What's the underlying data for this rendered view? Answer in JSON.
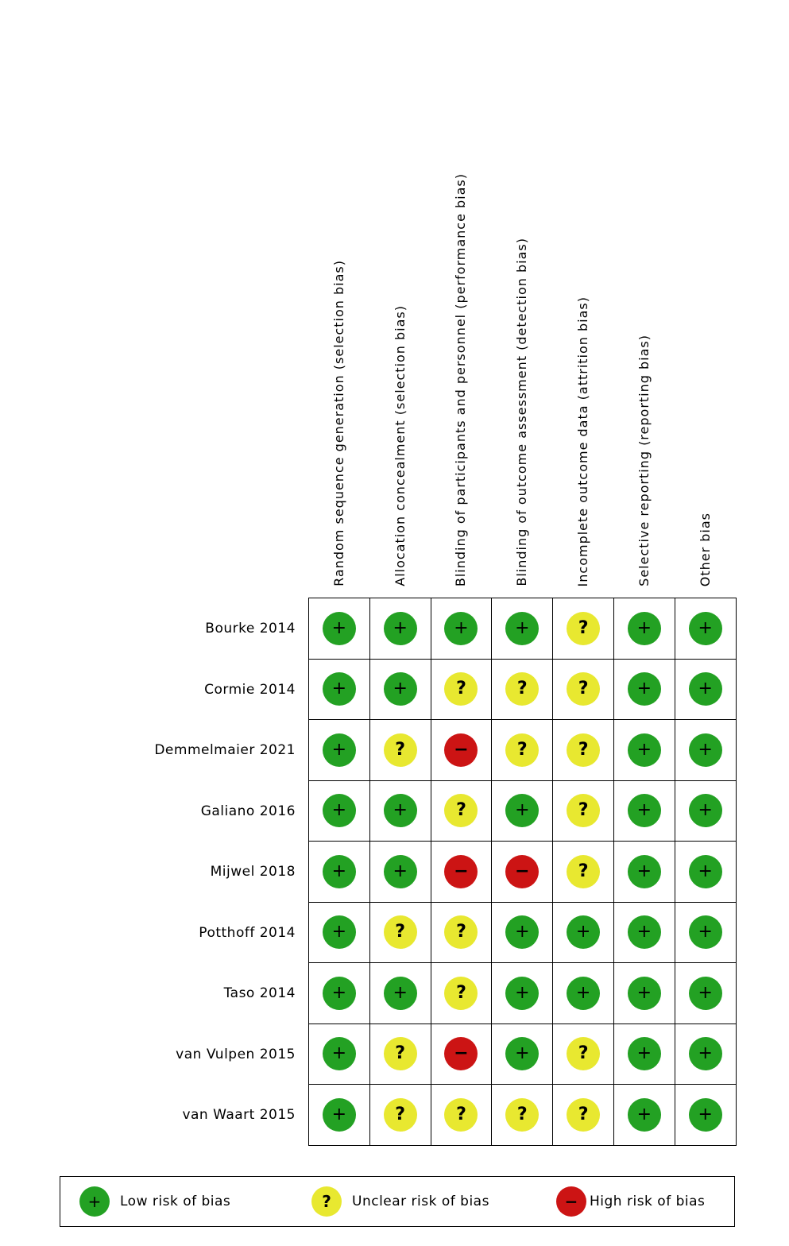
{
  "colors": {
    "low": "#23a123",
    "unclear": "#e8e830",
    "high": "#cc1414",
    "symbol": "#000000",
    "border": "#000000",
    "background": "#ffffff"
  },
  "chart_data": {
    "type": "table",
    "subtype": "risk-of-bias-summary",
    "title": "",
    "columns": [
      "Random sequence generation (selection bias)",
      "Allocation concealment (selection bias)",
      "Blinding of participants and personnel (performance bias)",
      "Blinding of outcome assessment (detection bias)",
      "Incomplete outcome data (attrition bias)",
      "Selective reporting (reporting bias)",
      "Other bias"
    ],
    "rows": [
      {
        "study": "Bourke 2014",
        "ratings": [
          "low",
          "low",
          "low",
          "low",
          "unclear",
          "low",
          "low"
        ]
      },
      {
        "study": "Cormie 2014",
        "ratings": [
          "low",
          "low",
          "unclear",
          "unclear",
          "unclear",
          "low",
          "low"
        ]
      },
      {
        "study": "Demmelmaier 2021",
        "ratings": [
          "low",
          "unclear",
          "high",
          "unclear",
          "unclear",
          "low",
          "low"
        ]
      },
      {
        "study": "Galiano 2016",
        "ratings": [
          "low",
          "low",
          "unclear",
          "low",
          "unclear",
          "low",
          "low"
        ]
      },
      {
        "study": "Mijwel 2018",
        "ratings": [
          "low",
          "low",
          "high",
          "high",
          "unclear",
          "low",
          "low"
        ]
      },
      {
        "study": "Potthoff 2014",
        "ratings": [
          "low",
          "unclear",
          "unclear",
          "low",
          "low",
          "low",
          "low"
        ]
      },
      {
        "study": "Taso 2014",
        "ratings": [
          "low",
          "low",
          "unclear",
          "low",
          "low",
          "low",
          "low"
        ]
      },
      {
        "study": "van Vulpen 2015",
        "ratings": [
          "low",
          "unclear",
          "high",
          "low",
          "unclear",
          "low",
          "low"
        ]
      },
      {
        "study": "van Waart 2015",
        "ratings": [
          "low",
          "unclear",
          "unclear",
          "unclear",
          "unclear",
          "low",
          "low"
        ]
      }
    ],
    "legend": [
      {
        "risk": "low",
        "symbol": "+",
        "label": "Low risk of bias",
        "color": "#23a123"
      },
      {
        "risk": "unclear",
        "symbol": "?",
        "label": "Unclear risk of bias",
        "color": "#e8e830"
      },
      {
        "risk": "high",
        "symbol": "−",
        "label": "High risk of bias",
        "color": "#cc1414"
      }
    ]
  }
}
